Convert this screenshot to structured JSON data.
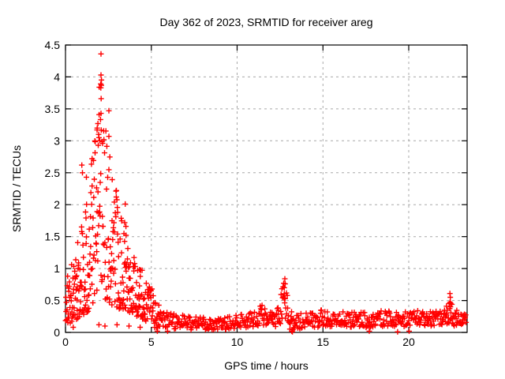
{
  "colors": {
    "marker": "#ff0000",
    "grid": "#a8a8a8",
    "axis": "#000000",
    "text": "#000000",
    "background": "#ffffff"
  },
  "chart_data": {
    "type": "scatter",
    "title": "Day 362 of 2023, SRMTID for receiver areg",
    "xlabel": "GPS time / hours",
    "ylabel": "SRMTID / TECUs",
    "xlim": [
      0,
      23.4
    ],
    "ylim": [
      0,
      4.5
    ],
    "xticks": [
      0,
      5,
      10,
      15,
      20
    ],
    "xtick_labels": [
      "0",
      "5",
      "10",
      "15",
      "20"
    ],
    "yticks": [
      0,
      0.5,
      1,
      1.5,
      2,
      2.5,
      3,
      3.5,
      4,
      4.5
    ],
    "ytick_labels": [
      "0",
      "0.5",
      "1",
      "1.5",
      "2",
      "2.5",
      "3",
      "3.5",
      "4",
      "4.5"
    ],
    "grid": true,
    "grid_style": "dashed",
    "legend": false,
    "marker": {
      "shape": "plus",
      "color": "#ff0000",
      "size": 7
    },
    "seed": 1337,
    "envelope_columns": [
      "x_hours",
      "y_min",
      "y_max",
      "points_per_hour",
      "low_bias"
    ],
    "envelope": [
      [
        0.0,
        0.1,
        0.9,
        70,
        1.35
      ],
      [
        0.3,
        0.15,
        1.05,
        70,
        1.35
      ],
      [
        0.6,
        0.2,
        1.4,
        70,
        1.35
      ],
      [
        0.9,
        0.22,
        1.8,
        70,
        1.3
      ],
      [
        1.1,
        0.28,
        2.2,
        70,
        1.3
      ],
      [
        1.35,
        0.32,
        2.5,
        70,
        1.3
      ],
      [
        1.6,
        0.42,
        2.8,
        70,
        1.3
      ],
      [
        1.8,
        0.48,
        3.2,
        70,
        1.25
      ],
      [
        1.95,
        0.52,
        3.8,
        70,
        1.25
      ],
      [
        2.05,
        0.55,
        4.1,
        70,
        1.25
      ],
      [
        2.2,
        0.55,
        3.6,
        70,
        1.25
      ],
      [
        2.35,
        0.5,
        3.2,
        70,
        1.3
      ],
      [
        2.55,
        0.45,
        3.0,
        70,
        1.3
      ],
      [
        2.75,
        0.42,
        2.6,
        70,
        1.3
      ],
      [
        2.95,
        0.4,
        2.3,
        68,
        1.3
      ],
      [
        3.15,
        0.36,
        1.8,
        68,
        1.3
      ],
      [
        3.4,
        0.34,
        1.9,
        68,
        1.35
      ],
      [
        3.65,
        0.3,
        1.4,
        66,
        1.35
      ],
      [
        3.9,
        0.28,
        1.25,
        64,
        1.3
      ],
      [
        4.2,
        0.25,
        1.12,
        62,
        1.3
      ],
      [
        4.5,
        0.2,
        1.0,
        58,
        1.25
      ],
      [
        4.8,
        0.15,
        0.88,
        55,
        1.2
      ],
      [
        5.1,
        0.08,
        0.68,
        50,
        1.15
      ],
      [
        5.35,
        0.06,
        0.5,
        45,
        1.1
      ],
      [
        5.6,
        0.05,
        0.35,
        38,
        1.0
      ],
      [
        6.0,
        0.05,
        0.3,
        32,
        1.0
      ],
      [
        7.0,
        0.04,
        0.27,
        32,
        1.0
      ],
      [
        8.0,
        0.04,
        0.24,
        32,
        1.0
      ],
      [
        9.0,
        0.04,
        0.22,
        32,
        1.0
      ],
      [
        9.8,
        0.05,
        0.26,
        32,
        1.0
      ],
      [
        10.5,
        0.07,
        0.3,
        32,
        1.0
      ],
      [
        11.1,
        0.08,
        0.32,
        33,
        1.0
      ],
      [
        11.45,
        0.08,
        0.45,
        36,
        1.0
      ],
      [
        11.75,
        0.08,
        0.38,
        34,
        1.0
      ],
      [
        12.1,
        0.06,
        0.3,
        32,
        1.0
      ],
      [
        12.35,
        0.08,
        0.4,
        38,
        1.0
      ],
      [
        12.55,
        0.1,
        0.62,
        44,
        1.0
      ],
      [
        12.7,
        0.1,
        0.8,
        46,
        1.0
      ],
      [
        12.85,
        0.08,
        0.66,
        44,
        1.0
      ],
      [
        13.0,
        0.05,
        0.5,
        40,
        1.0
      ],
      [
        13.2,
        0.04,
        0.36,
        36,
        1.0
      ],
      [
        13.45,
        0.05,
        0.28,
        32,
        1.0
      ],
      [
        14.0,
        0.07,
        0.32,
        32,
        1.0
      ],
      [
        14.6,
        0.08,
        0.3,
        32,
        1.0
      ],
      [
        15.05,
        0.09,
        0.38,
        33,
        1.0
      ],
      [
        15.5,
        0.08,
        0.3,
        32,
        1.0
      ],
      [
        16.2,
        0.08,
        0.33,
        32,
        1.0
      ],
      [
        17.0,
        0.09,
        0.34,
        32,
        1.0
      ],
      [
        17.8,
        0.07,
        0.3,
        32,
        1.0
      ],
      [
        18.6,
        0.1,
        0.36,
        32,
        1.0
      ],
      [
        19.4,
        0.08,
        0.31,
        32,
        1.0
      ],
      [
        20.1,
        0.09,
        0.33,
        32,
        1.0
      ],
      [
        20.9,
        0.1,
        0.36,
        32,
        1.0
      ],
      [
        21.6,
        0.1,
        0.37,
        33,
        1.0
      ],
      [
        22.1,
        0.11,
        0.4,
        36,
        1.0
      ],
      [
        22.35,
        0.13,
        0.52,
        40,
        1.0
      ],
      [
        22.6,
        0.1,
        0.4,
        36,
        1.0
      ],
      [
        22.95,
        0.12,
        0.35,
        40,
        1.0
      ],
      [
        23.35,
        0.14,
        0.3,
        44,
        1.0
      ]
    ],
    "notable_points": [
      [
        2.07,
        4.36
      ],
      [
        2.07,
        4.03
      ],
      [
        2.05,
        3.89
      ],
      [
        2.09,
        3.87
      ],
      [
        2.06,
        3.83
      ],
      [
        2.08,
        3.66
      ],
      [
        2.07,
        3.43
      ],
      [
        2.53,
        3.47
      ],
      [
        2.53,
        3.07
      ],
      [
        1.89,
        3.27
      ],
      [
        1.85,
        3.2
      ],
      [
        1.84,
        3.17
      ],
      [
        1.93,
        3.1
      ],
      [
        1.95,
        3.05
      ],
      [
        2.0,
        3.0
      ],
      [
        0.95,
        2.62
      ],
      [
        0.99,
        2.5
      ],
      [
        1.22,
        2.43
      ],
      [
        1.55,
        2.72
      ],
      [
        3.48,
        2.01
      ],
      [
        3.45,
        1.72
      ],
      [
        3.52,
        1.66
      ],
      [
        12.78,
        0.84
      ],
      [
        12.8,
        0.76
      ],
      [
        12.75,
        0.7
      ],
      [
        22.4,
        0.61
      ],
      [
        22.42,
        0.55
      ],
      [
        22.4,
        0.47
      ],
      [
        22.43,
        0.4
      ],
      [
        5.35,
        0.02
      ],
      [
        5.95,
        0.02
      ],
      [
        13.18,
        0.02
      ],
      [
        13.22,
        0.01
      ],
      [
        17.7,
        0.02
      ],
      [
        19.35,
        0.01
      ],
      [
        20.02,
        0.02
      ],
      [
        2.3,
        0.1
      ],
      [
        3.0,
        0.12
      ],
      [
        3.7,
        0.1
      ],
      [
        4.35,
        0.08
      ],
      [
        1.95,
        0.12
      ],
      [
        0.45,
        0.08
      ]
    ]
  }
}
